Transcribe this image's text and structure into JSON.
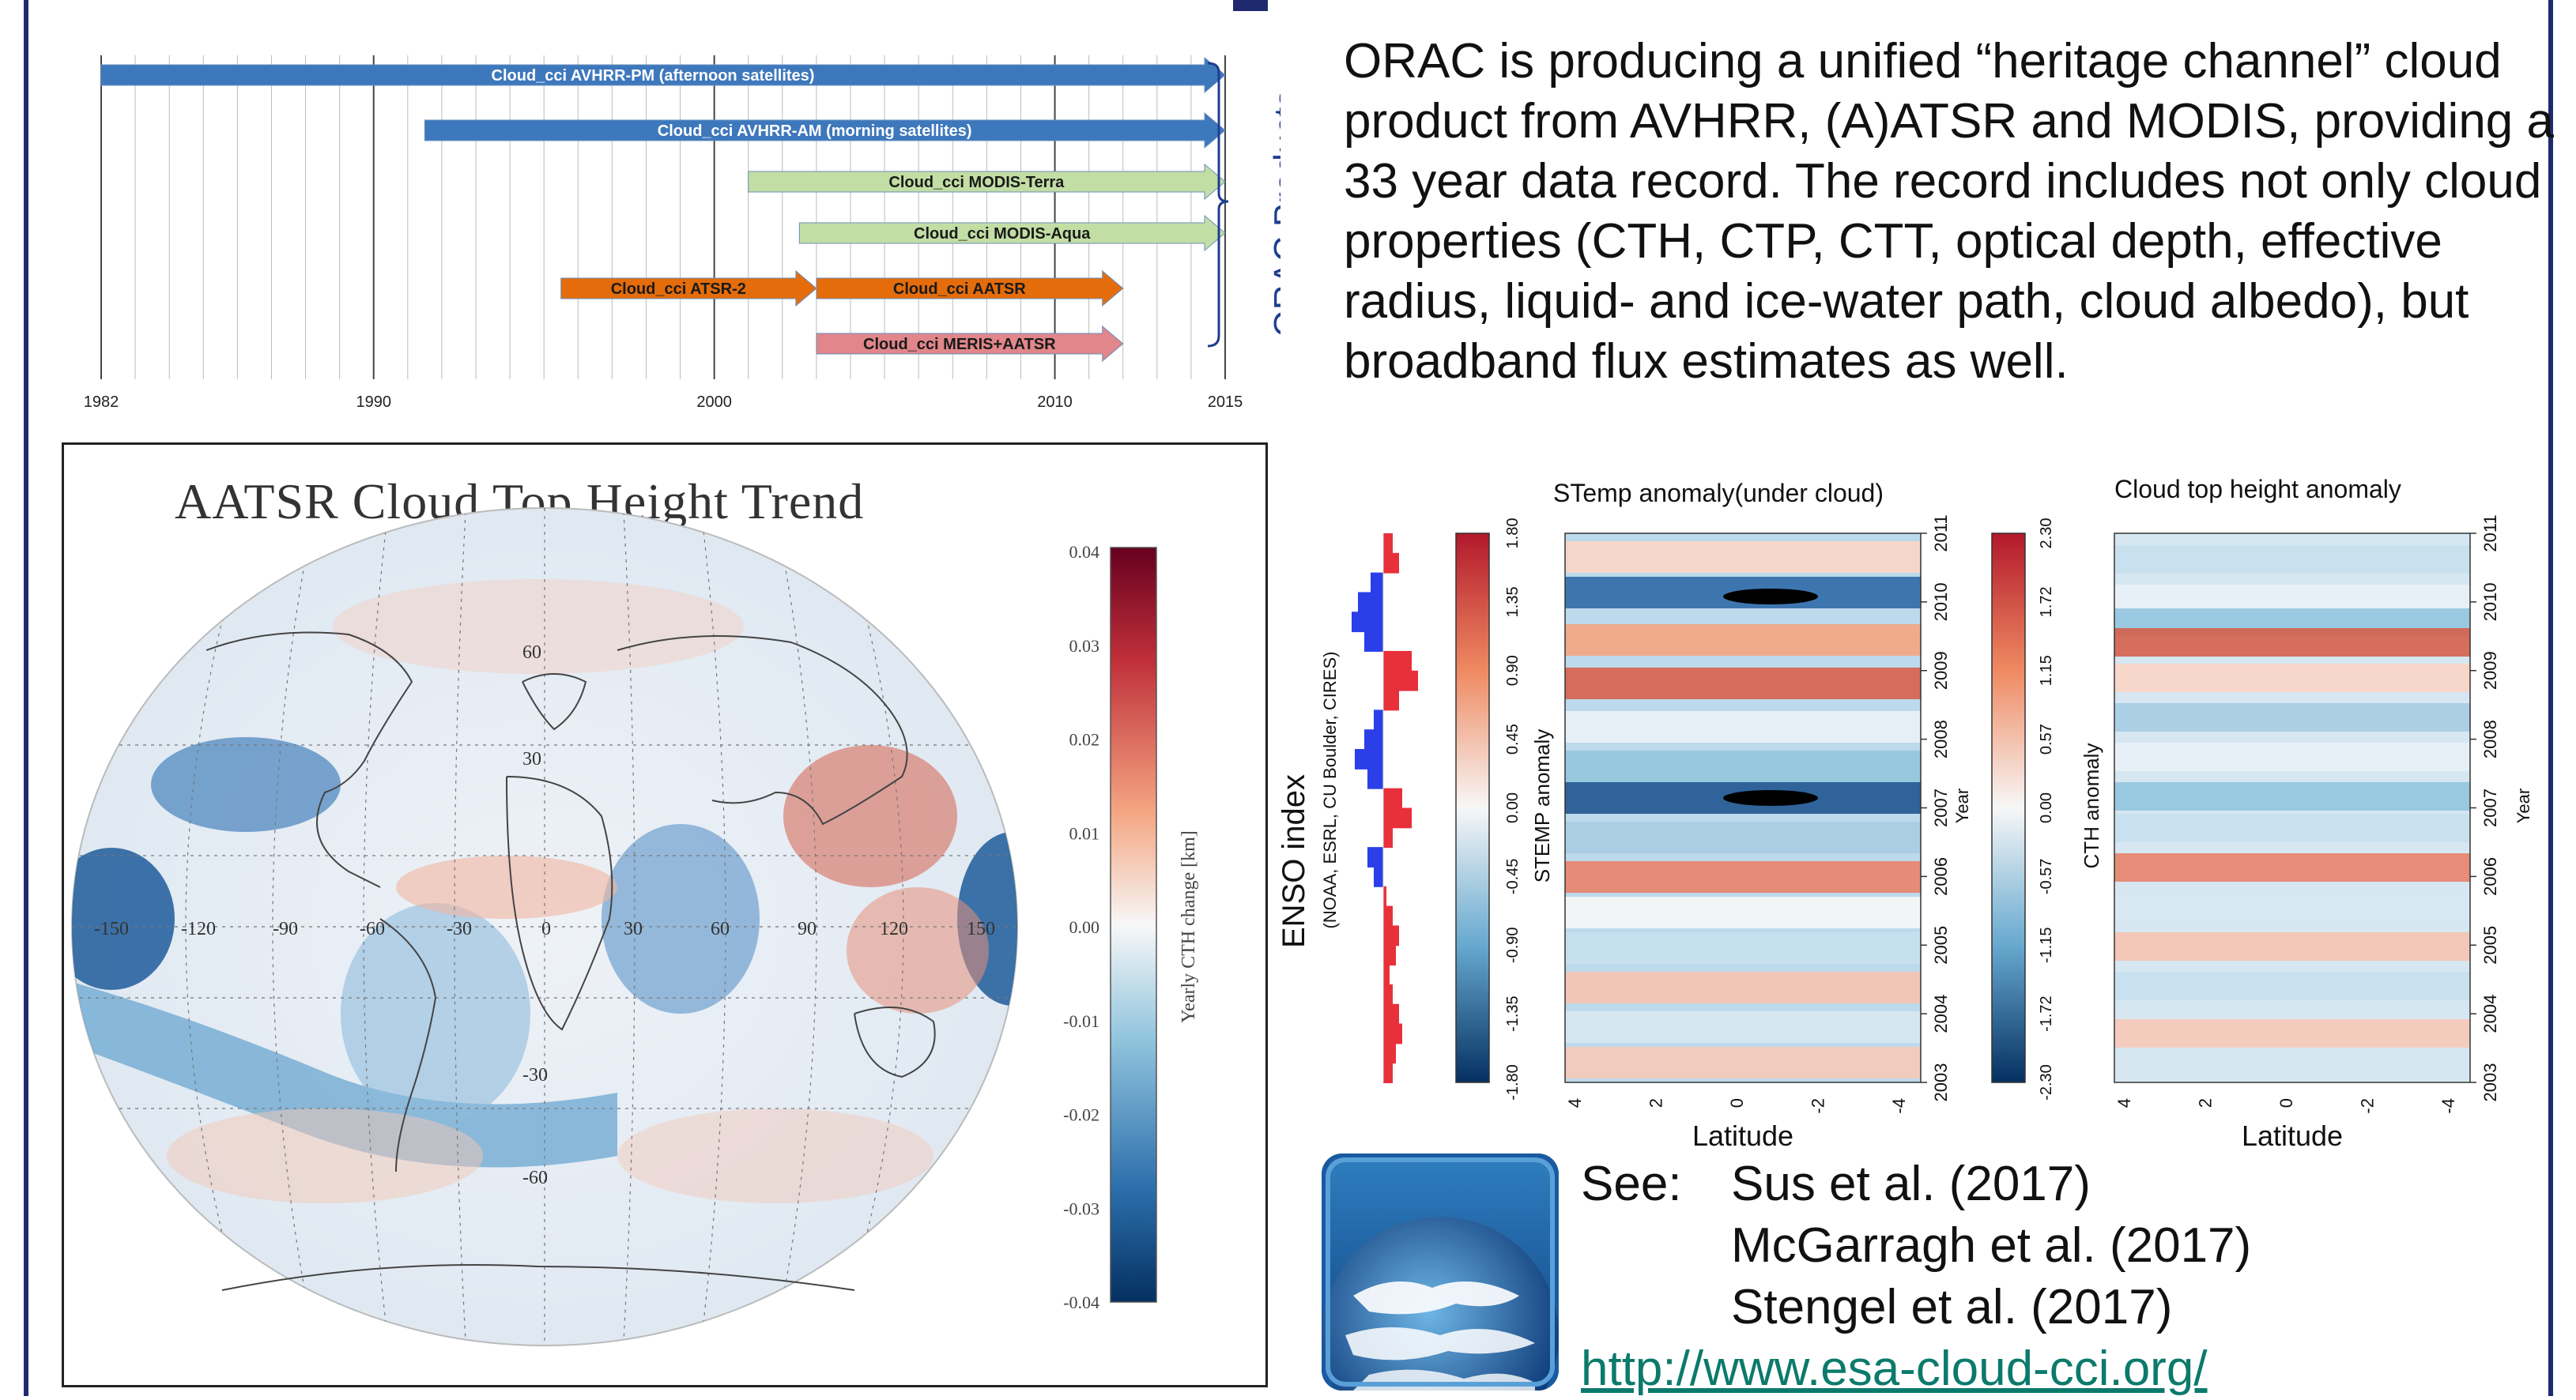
{
  "timeline": {
    "bars": [
      {
        "label": "Cloud_cci AVHRR-PM (afternoon satellites)",
        "start": 1982,
        "end": 2015,
        "color": "#3e78bc"
      },
      {
        "label": "Cloud_cci AVHRR-AM (morning satellites)",
        "start": 1991.5,
        "end": 2015,
        "color": "#3e78bc"
      },
      {
        "label": "Cloud_cci MODIS-Terra",
        "start": 2001,
        "end": 2015,
        "color": "#c2dea4"
      },
      {
        "label": "Cloud_cci MODIS-Aqua",
        "start": 2002.5,
        "end": 2015,
        "color": "#c2dea4"
      },
      {
        "label": "Cloud_cci ATSR-2",
        "start": 1995.5,
        "end": 2003,
        "color": "#e46c0a"
      },
      {
        "label": "Cloud_cci AATSR",
        "start": 2003,
        "end": 2012,
        "color": "#e46c0a"
      },
      {
        "label": "Cloud_cci MERIS+AATSR",
        "start": 2003,
        "end": 2012,
        "color": "#e1868a"
      }
    ],
    "years": [
      "1982",
      "1990",
      "2000",
      "2010",
      "2015"
    ],
    "bracket_label": "ORAC Products"
  },
  "description": "ORAC is producing a unified “heritage channel” cloud product from AVHRR, (A)ATSR and MODIS, providing a 33 year data record. The record includes not only cloud properties (CTH, CTP, CTT, optical depth, effective radius, liquid- and ice-water path, cloud albedo), but broadband flux estimates as well.",
  "map": {
    "title": "AATSR Cloud Top Height  Trend",
    "colorbar_label": "Yearly CTH change [km]",
    "colorbar_ticks": [
      "0.04",
      "0.03",
      "0.02",
      "0.01",
      "0.00",
      "-0.01",
      "-0.02",
      "-0.03",
      "-0.04"
    ],
    "lon_labels": [
      "-150",
      "-120",
      "-90",
      "-60",
      "-30",
      "0",
      "30",
      "60",
      "90",
      "120",
      "150"
    ],
    "lat_labels": [
      "60",
      "30",
      "-30",
      "-60"
    ]
  },
  "hovmoller": {
    "enso_label": "ENSO index",
    "enso_source": "(NOAA, ESRL, CU Boulder, CIRES)",
    "left": {
      "title": "STemp anomaly(under cloud)",
      "axis_label": "STEMP anomaly",
      "colorbar_ticks": [
        "1.80",
        "1.35",
        "0.90",
        "0.45",
        "0.00",
        "-0.45",
        "-0.90",
        "-1.35",
        "-1.80"
      ]
    },
    "right": {
      "title": "Cloud top height anomaly",
      "axis_label": "CTH anomaly",
      "colorbar_ticks": [
        "2.30",
        "1.72",
        "1.15",
        "0.57",
        "0.00",
        "-0.57",
        "-1.15",
        "-1.72",
        "-2.30"
      ]
    },
    "years": [
      "2011",
      "2010",
      "2009",
      "2008",
      "2007",
      "2006",
      "2005",
      "2004",
      "2003"
    ],
    "year_axis_label": "Year",
    "lat_ticks": [
      "4",
      "2",
      "0",
      "-2",
      "-4"
    ],
    "xlabel": "Latitude"
  },
  "references": {
    "see_label": "See:",
    "items": [
      "Sus et al. (2017)",
      "McGarragh et al. (2017)",
      "Stengel et al. (2017)"
    ],
    "link": "http://www.esa-cloud-cci.org/"
  },
  "colors": {
    "frame": "#1f2a6e",
    "blue_bar": "#3e78bc",
    "green_bar": "#c2dea4",
    "orange_bar": "#e46c0a",
    "pink_bar": "#e1868a",
    "link": "#0b7a6b"
  }
}
